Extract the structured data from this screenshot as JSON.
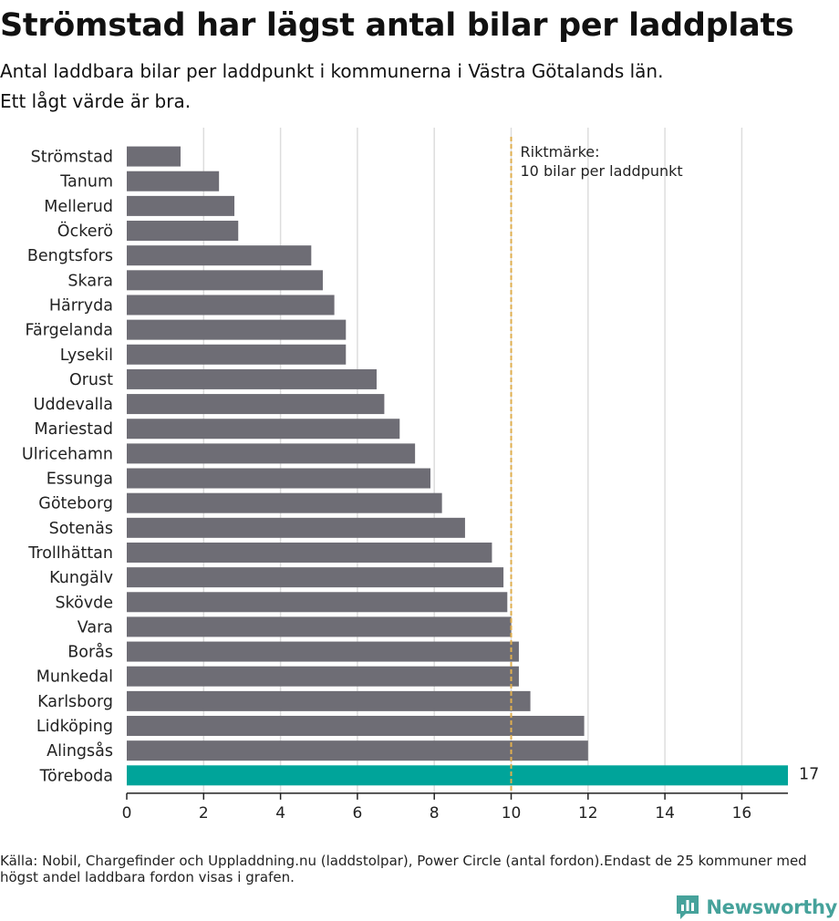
{
  "title": "Strömstad har lägst antal bilar per laddplats",
  "subtitle_lines": [
    "Antal laddbara bilar per laddpunkt i kommunerna i Västra Götalands län.",
    "Ett lågt värde är bra."
  ],
  "footnote": "Källa: Nobil, Chargefinder och Uppladdning.nu (laddstolpar), Power Circle (antal fordon).Endast de 25 kommuner med högst andel laddbara fordon visas i grafen.",
  "brand": {
    "name": "Newsworthy",
    "icon": "bar-chart-logo-icon",
    "color": "#46a29b"
  },
  "chart_data": {
    "type": "bar",
    "orientation": "horizontal",
    "categories": [
      "Strömstad",
      "Tanum",
      "Mellerud",
      "Öckerö",
      "Bengtsfors",
      "Skara",
      "Härryda",
      "Färgelanda",
      "Lysekil",
      "Orust",
      "Uddevalla",
      "Mariestad",
      "Ulricehamn",
      "Essunga",
      "Göteborg",
      "Sotenäs",
      "Trollhättan",
      "Kungälv",
      "Skövde",
      "Vara",
      "Borås",
      "Munkedal",
      "Karlsborg",
      "Lidköping",
      "Alingsås",
      "Töreboda"
    ],
    "values": [
      1.4,
      2.4,
      2.8,
      2.9,
      4.8,
      5.1,
      5.4,
      5.7,
      5.7,
      6.5,
      6.7,
      7.1,
      7.5,
      7.9,
      8.2,
      8.8,
      9.5,
      9.8,
      9.9,
      10.0,
      10.2,
      10.2,
      10.5,
      11.9,
      12.0,
      17.2
    ],
    "highlight": {
      "category": "Töreboda",
      "label": "17",
      "color": "#00a49a"
    },
    "bar_color": "#6e6d75",
    "xlim": [
      0,
      17.2
    ],
    "xticks": [
      0,
      2,
      4,
      6,
      8,
      10,
      12,
      14,
      16
    ],
    "grid": true,
    "reference_line": {
      "value": 10,
      "color": "#dfae4f",
      "style": "dashed",
      "label_lines": [
        "Riktmärke:",
        "10 bilar per laddpunkt"
      ]
    }
  }
}
